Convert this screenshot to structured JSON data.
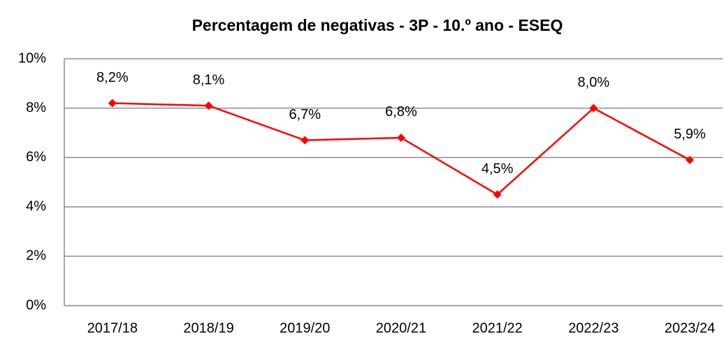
{
  "chart_data": {
    "type": "line",
    "title": "Percentagem de negativas - 3P - 10.º ano - ESEQ",
    "categories": [
      "2017/18",
      "2018/19",
      "2019/20",
      "2020/21",
      "2021/22",
      "2022/23",
      "2023/24"
    ],
    "series": [
      {
        "name": "Percentagem de negativas",
        "color": "#ff0000",
        "values": [
          8.2,
          8.1,
          6.7,
          6.8,
          4.5,
          8.0,
          5.9
        ],
        "value_labels": [
          "8,2%",
          "8,1%",
          "6,7%",
          "6,8%",
          "4,5%",
          "8,0%",
          "5,9%"
        ]
      }
    ],
    "ylim": [
      0,
      10
    ],
    "yticks": [
      {
        "value": 0,
        "label": "0%"
      },
      {
        "value": 2,
        "label": "2%"
      },
      {
        "value": 4,
        "label": "4%"
      },
      {
        "value": 6,
        "label": "6%"
      },
      {
        "value": 8,
        "label": "8%"
      },
      {
        "value": 10,
        "label": "10%"
      }
    ],
    "grid": true
  }
}
